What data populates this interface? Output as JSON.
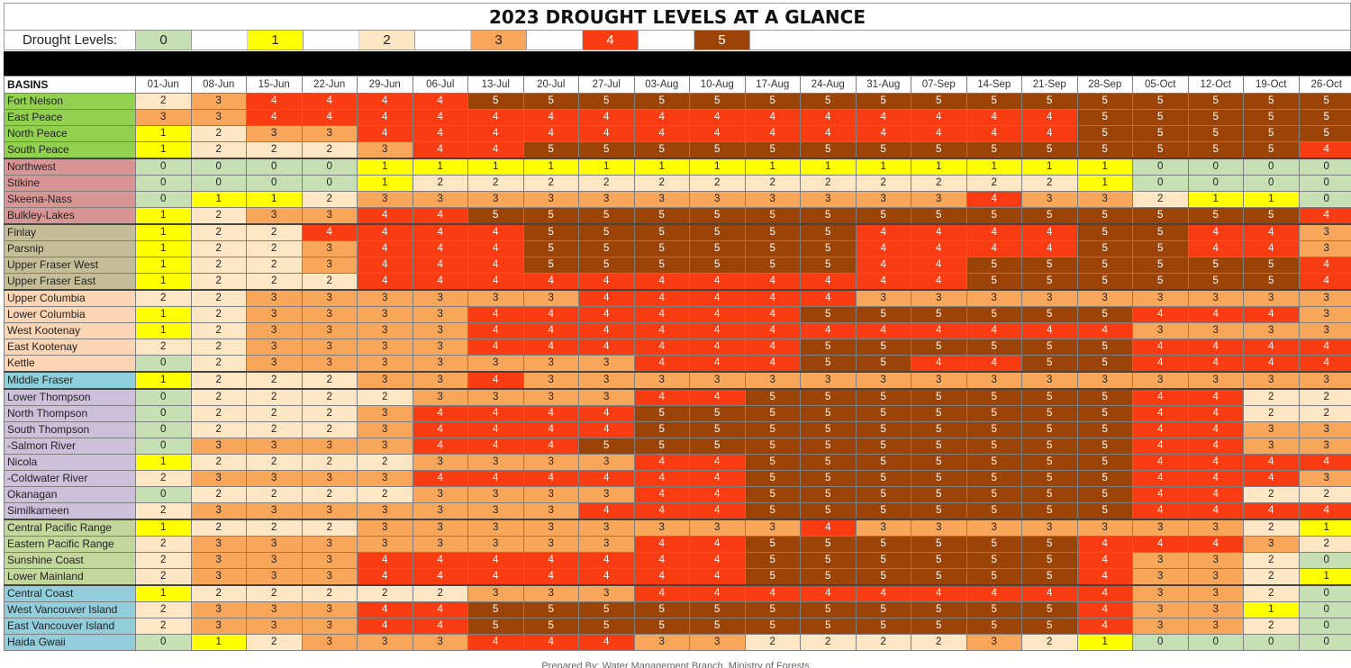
{
  "title": "2023 DROUGHT LEVELS AT A GLANCE",
  "legend": {
    "label": "Drought Levels:",
    "levels": [
      "0",
      "1",
      "2",
      "3",
      "4",
      "5"
    ]
  },
  "colors": {
    "0": "#c6e0b4",
    "1": "#ffff00",
    "2": "#fde6c4",
    "3": "#f8a75a",
    "4": "#fa3c12",
    "5": "#9c4307",
    "group_north": "#92d050",
    "group_northwest": "#d99594",
    "group_central": "#c4bd97",
    "group_columbia": "#fcd5b4",
    "group_middle": "#8ecfdc",
    "group_thompson": "#ccc0da",
    "group_coast": "#c3d69b",
    "group_island": "#92cddc"
  },
  "table": {
    "basin_header": "BASINS",
    "dates": [
      "01-Jun",
      "08-Jun",
      "15-Jun",
      "22-Jun",
      "29-Jun",
      "06-Jul",
      "13-Jul",
      "20-Jul",
      "27-Jul",
      "03-Aug",
      "10-Aug",
      "17-Aug",
      "24-Aug",
      "31-Aug",
      "07-Sep",
      "14-Sep",
      "21-Sep",
      "28-Sep",
      "05-Oct",
      "12-Oct",
      "19-Oct",
      "26-Oct"
    ],
    "rows": [
      {
        "name": "Fort Nelson",
        "group": "north",
        "groupStart": true,
        "values": [
          2,
          3,
          4,
          4,
          4,
          4,
          5,
          5,
          5,
          5,
          5,
          5,
          5,
          5,
          5,
          5,
          5,
          5,
          5,
          5,
          5,
          5
        ]
      },
      {
        "name": "East Peace",
        "group": "north",
        "values": [
          3,
          3,
          4,
          4,
          4,
          4,
          4,
          4,
          4,
          4,
          4,
          4,
          4,
          4,
          4,
          4,
          4,
          5,
          5,
          5,
          5,
          5
        ]
      },
      {
        "name": "North Peace",
        "group": "north",
        "values": [
          1,
          2,
          3,
          3,
          4,
          4,
          4,
          4,
          4,
          4,
          4,
          4,
          4,
          4,
          4,
          4,
          4,
          5,
          5,
          5,
          5,
          5
        ]
      },
      {
        "name": "South Peace",
        "group": "north",
        "values": [
          1,
          2,
          2,
          2,
          3,
          4,
          4,
          5,
          5,
          5,
          5,
          5,
          5,
          5,
          5,
          5,
          5,
          5,
          5,
          5,
          5,
          4
        ]
      },
      {
        "name": "Northwest",
        "group": "northwest",
        "groupStart": true,
        "values": [
          0,
          0,
          0,
          0,
          1,
          1,
          1,
          1,
          1,
          1,
          1,
          1,
          1,
          1,
          1,
          1,
          1,
          1,
          0,
          0,
          0,
          0
        ]
      },
      {
        "name": "Stikine",
        "group": "northwest",
        "values": [
          0,
          0,
          0,
          0,
          1,
          2,
          2,
          2,
          2,
          2,
          2,
          2,
          2,
          2,
          2,
          2,
          2,
          1,
          0,
          0,
          0,
          0
        ]
      },
      {
        "name": "Skeena-Nass",
        "group": "northwest",
        "values": [
          0,
          1,
          1,
          2,
          3,
          3,
          3,
          3,
          3,
          3,
          3,
          3,
          3,
          3,
          3,
          4,
          3,
          3,
          2,
          1,
          1,
          0
        ]
      },
      {
        "name": "Bulkley-Lakes",
        "group": "northwest",
        "values": [
          1,
          2,
          3,
          3,
          4,
          4,
          5,
          5,
          5,
          5,
          5,
          5,
          5,
          5,
          5,
          5,
          5,
          5,
          5,
          5,
          5,
          4
        ]
      },
      {
        "name": "Finlay",
        "group": "central",
        "groupStart": true,
        "values": [
          1,
          2,
          2,
          4,
          4,
          4,
          4,
          5,
          5,
          5,
          5,
          5,
          5,
          4,
          4,
          4,
          4,
          5,
          5,
          4,
          4,
          3
        ]
      },
      {
        "name": "Parsnip",
        "group": "central",
        "values": [
          1,
          2,
          2,
          3,
          4,
          4,
          4,
          5,
          5,
          5,
          5,
          5,
          5,
          4,
          4,
          4,
          4,
          5,
          5,
          4,
          4,
          3
        ]
      },
      {
        "name": "Upper Fraser West",
        "group": "central",
        "values": [
          1,
          2,
          2,
          3,
          4,
          4,
          4,
          5,
          5,
          5,
          5,
          5,
          5,
          4,
          4,
          5,
          5,
          5,
          5,
          5,
          5,
          4
        ]
      },
      {
        "name": "Upper Fraser East",
        "group": "central",
        "values": [
          1,
          2,
          2,
          2,
          4,
          4,
          4,
          4,
          4,
          4,
          4,
          4,
          4,
          4,
          4,
          5,
          5,
          5,
          5,
          5,
          5,
          4
        ]
      },
      {
        "name": "Upper Columbia",
        "group": "columbia",
        "groupStart": true,
        "values": [
          2,
          2,
          3,
          3,
          3,
          3,
          3,
          3,
          4,
          4,
          4,
          4,
          4,
          3,
          3,
          3,
          3,
          3,
          3,
          3,
          3,
          3
        ]
      },
      {
        "name": "Lower Columbia",
        "group": "columbia",
        "values": [
          1,
          2,
          3,
          3,
          3,
          3,
          4,
          4,
          4,
          4,
          4,
          4,
          5,
          5,
          5,
          5,
          5,
          5,
          4,
          4,
          4,
          3
        ]
      },
      {
        "name": "West Kootenay",
        "group": "columbia",
        "values": [
          1,
          2,
          3,
          3,
          3,
          3,
          4,
          4,
          4,
          4,
          4,
          4,
          4,
          4,
          4,
          4,
          4,
          4,
          3,
          3,
          3,
          3
        ]
      },
      {
        "name": "East Kootenay",
        "group": "columbia",
        "values": [
          2,
          2,
          3,
          3,
          3,
          3,
          4,
          4,
          4,
          4,
          4,
          4,
          5,
          5,
          5,
          5,
          5,
          5,
          4,
          4,
          4,
          4
        ]
      },
      {
        "name": "Kettle",
        "group": "columbia",
        "values": [
          0,
          2,
          3,
          3,
          3,
          3,
          3,
          3,
          3,
          4,
          4,
          4,
          5,
          5,
          4,
          4,
          5,
          5,
          4,
          4,
          4,
          4
        ]
      },
      {
        "name": "Middle Fraser",
        "group": "middle",
        "groupStart": true,
        "values": [
          1,
          2,
          2,
          2,
          3,
          3,
          4,
          3,
          3,
          3,
          3,
          3,
          3,
          3,
          3,
          3,
          3,
          3,
          3,
          3,
          3,
          3
        ]
      },
      {
        "name": "Lower Thompson",
        "group": "thompson",
        "groupStart": true,
        "values": [
          0,
          2,
          2,
          2,
          2,
          3,
          3,
          3,
          3,
          4,
          4,
          5,
          5,
          5,
          5,
          5,
          5,
          5,
          4,
          4,
          2,
          2
        ]
      },
      {
        "name": "North Thompson",
        "group": "thompson",
        "values": [
          0,
          2,
          2,
          2,
          3,
          4,
          4,
          4,
          4,
          5,
          5,
          5,
          5,
          5,
          5,
          5,
          5,
          5,
          4,
          4,
          2,
          2
        ]
      },
      {
        "name": "South Thompson",
        "group": "thompson",
        "values": [
          0,
          2,
          2,
          2,
          3,
          4,
          4,
          4,
          4,
          5,
          5,
          5,
          5,
          5,
          5,
          5,
          5,
          5,
          4,
          4,
          3,
          3
        ]
      },
      {
        "name": " -Salmon River",
        "group": "thompson",
        "values": [
          0,
          3,
          3,
          3,
          3,
          4,
          4,
          4,
          5,
          5,
          5,
          5,
          5,
          5,
          5,
          5,
          5,
          5,
          4,
          4,
          3,
          3
        ]
      },
      {
        "name": "Nicola",
        "group": "thompson",
        "values": [
          1,
          2,
          2,
          2,
          2,
          3,
          3,
          3,
          3,
          4,
          4,
          5,
          5,
          5,
          5,
          5,
          5,
          5,
          4,
          4,
          4,
          4
        ]
      },
      {
        "name": " -Coldwater River",
        "group": "thompson",
        "values": [
          2,
          3,
          3,
          3,
          3,
          4,
          4,
          4,
          4,
          4,
          4,
          5,
          5,
          5,
          5,
          5,
          5,
          5,
          4,
          4,
          4,
          3
        ]
      },
      {
        "name": "Okanagan",
        "group": "thompson",
        "values": [
          0,
          2,
          2,
          2,
          2,
          3,
          3,
          3,
          3,
          4,
          4,
          5,
          5,
          5,
          5,
          5,
          5,
          5,
          4,
          4,
          2,
          2
        ]
      },
      {
        "name": "Similkameen",
        "group": "thompson",
        "values": [
          2,
          3,
          3,
          3,
          3,
          3,
          3,
          3,
          4,
          4,
          4,
          5,
          5,
          5,
          5,
          5,
          5,
          5,
          4,
          4,
          4,
          4
        ]
      },
      {
        "name": "Central Pacific Range",
        "group": "coast",
        "groupStart": true,
        "values": [
          1,
          2,
          2,
          2,
          3,
          3,
          3,
          3,
          3,
          3,
          3,
          3,
          4,
          3,
          3,
          3,
          3,
          3,
          3,
          3,
          2,
          1
        ]
      },
      {
        "name": "Eastern Pacific Range",
        "group": "coast",
        "values": [
          2,
          3,
          3,
          3,
          3,
          3,
          3,
          3,
          3,
          4,
          4,
          5,
          5,
          5,
          5,
          5,
          5,
          4,
          4,
          4,
          3,
          2
        ]
      },
      {
        "name": "Sunshine Coast",
        "group": "coast",
        "values": [
          2,
          3,
          3,
          3,
          4,
          4,
          4,
          4,
          4,
          4,
          4,
          5,
          5,
          5,
          5,
          5,
          5,
          4,
          3,
          3,
          2,
          0
        ]
      },
      {
        "name": "Lower Mainland",
        "group": "coast",
        "values": [
          2,
          3,
          3,
          3,
          4,
          4,
          4,
          4,
          4,
          4,
          4,
          5,
          5,
          5,
          5,
          5,
          5,
          4,
          3,
          3,
          2,
          1
        ]
      },
      {
        "name": "Central Coast",
        "group": "island",
        "groupStart": true,
        "values": [
          1,
          2,
          2,
          2,
          2,
          2,
          3,
          3,
          3,
          4,
          4,
          4,
          4,
          4,
          4,
          4,
          4,
          4,
          3,
          3,
          2,
          0
        ]
      },
      {
        "name": "West Vancouver Island",
        "group": "island",
        "values": [
          2,
          3,
          3,
          3,
          4,
          4,
          5,
          5,
          5,
          5,
          5,
          5,
          5,
          5,
          5,
          5,
          5,
          4,
          3,
          3,
          1,
          0
        ]
      },
      {
        "name": "East Vancouver Island",
        "group": "island",
        "values": [
          2,
          3,
          3,
          3,
          4,
          4,
          5,
          5,
          5,
          5,
          5,
          5,
          5,
          5,
          5,
          5,
          5,
          4,
          3,
          3,
          2,
          0
        ]
      },
      {
        "name": "Haida Gwaii",
        "group": "island",
        "values": [
          0,
          1,
          2,
          3,
          3,
          3,
          4,
          4,
          4,
          3,
          3,
          2,
          2,
          2,
          2,
          3,
          2,
          1,
          0,
          0,
          0,
          0
        ]
      }
    ]
  },
  "footer": "Prepared By: Water Management Branch, Ministry of Forests"
}
